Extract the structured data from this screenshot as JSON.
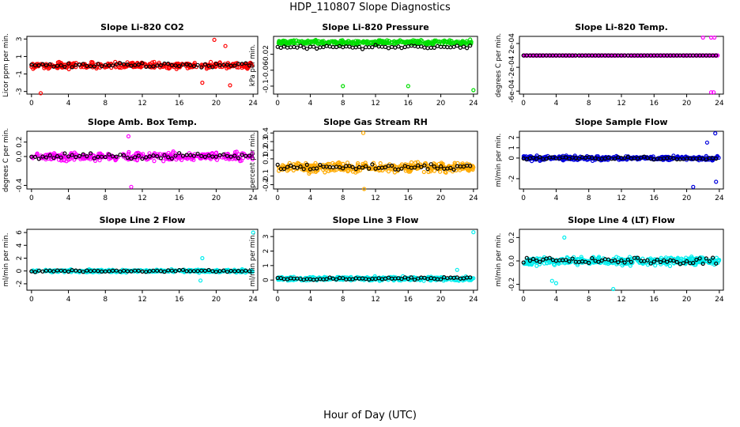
{
  "title": "HDP_110807  Slope Diagnostics",
  "xlabel": "Hour of Day (UTC)",
  "chart_data": [
    {
      "type": "scatter",
      "title": "Slope Li-820 CO2",
      "ylabel": "Licor ppm per min.",
      "color": "#ff0000",
      "xlim": [
        -0.5,
        24.5
      ],
      "ylim": [
        -3.3,
        3.3
      ],
      "xticks": [
        0,
        4,
        8,
        12,
        16,
        20,
        24
      ],
      "yticks": [
        -3,
        -1,
        1,
        3
      ],
      "spread": 0.5,
      "outliers_hi": [
        [
          19.8,
          2.9
        ],
        [
          21.0,
          2.2
        ]
      ],
      "outliers_lo": [
        [
          18.5,
          -2.0
        ],
        [
          21.5,
          -2.3
        ],
        [
          1.0,
          -3.2
        ]
      ]
    },
    {
      "type": "scatter",
      "title": "Slope Li-820 Pressure",
      "ylabel": "kPa per min.",
      "color": "#00dd00",
      "xlim": [
        -0.5,
        24.5
      ],
      "ylim": [
        -0.12,
        0.025
      ],
      "xticks": [
        0,
        4,
        8,
        12,
        16,
        20,
        24
      ],
      "yticks": [
        -0.1,
        -0.06,
        -0.02
      ],
      "spread": 0.008,
      "center": 0.01,
      "outliers_lo": [
        [
          8.0,
          -0.1
        ],
        [
          16.0,
          -0.1
        ],
        [
          24.0,
          -0.11
        ]
      ]
    },
    {
      "type": "scatter",
      "title": "Slope Li-820 Temp.",
      "ylabel": "degrees C per min.",
      "color": "#ff00ff",
      "xlim": [
        -0.5,
        24.5
      ],
      "ylim": [
        -0.00065,
        0.00032
      ],
      "xticks": [
        0,
        4,
        8,
        12,
        16,
        20,
        24
      ],
      "yticks": [
        "-6e-04",
        "-2e-04",
        "2e-04"
      ],
      "spread": 0,
      "outliers_hi": [
        [
          22.0,
          0.0003
        ],
        [
          23.0,
          0.0003
        ],
        [
          23.4,
          0.0003
        ]
      ],
      "outliers_lo": [
        [
          23.0,
          -0.00062
        ],
        [
          23.3,
          -0.00062
        ]
      ]
    },
    {
      "type": "scatter",
      "title": "Slope Amb. Box Temp.",
      "ylabel": "degrees C per min.",
      "color": "#ff00ff",
      "xlim": [
        -0.5,
        24.5
      ],
      "ylim": [
        -0.45,
        0.35
      ],
      "xticks": [
        0,
        4,
        8,
        12,
        16,
        20,
        24
      ],
      "yticks": [
        "-0.4",
        "0.0",
        "0.2"
      ],
      "spread": 0.08,
      "outliers_hi": [
        [
          10.5,
          0.28
        ]
      ],
      "outliers_lo": [
        [
          10.8,
          -0.42
        ]
      ]
    },
    {
      "type": "scatter",
      "title": "Slope Gas Stream RH",
      "ylabel": "percent per min.",
      "color": "#ffaa00",
      "xlim": [
        -0.5,
        24.5
      ],
      "ylim": [
        -0.25,
        0.42
      ],
      "xticks": [
        0,
        4,
        8,
        12,
        16,
        20,
        24
      ],
      "yticks": [
        "-0.2",
        "-0.1",
        "0.1",
        "0.2",
        "0.3",
        "0.4"
      ],
      "spread": 0.08,
      "outliers_hi": [
        [
          10.5,
          0.4
        ]
      ],
      "outliers_lo": [
        [
          10.6,
          -0.25
        ]
      ]
    },
    {
      "type": "scatter",
      "title": "Slope Sample Flow",
      "ylabel": "ml/min per min.",
      "color": "#0000dd",
      "xlim": [
        -0.5,
        24.5
      ],
      "ylim": [
        -3.0,
        2.6
      ],
      "xticks": [
        0,
        4,
        8,
        12,
        16,
        20,
        24
      ],
      "yticks": [
        "-2",
        "0",
        "1",
        "2"
      ],
      "spread": 0.3,
      "outliers_hi": [
        [
          23.5,
          2.4
        ],
        [
          22.5,
          1.5
        ]
      ],
      "outliers_lo": [
        [
          20.8,
          -2.8
        ],
        [
          23.6,
          -2.3
        ]
      ]
    },
    {
      "type": "scatter",
      "title": "Slope Line 2 Flow",
      "ylabel": "ml/min per min.",
      "color": "#00eeee",
      "xlim": [
        -0.5,
        24.5
      ],
      "ylim": [
        -3.0,
        6.5
      ],
      "xticks": [
        0,
        4,
        8,
        12,
        16,
        20,
        24
      ],
      "yticks": [
        "-2",
        "0",
        "2",
        "4",
        "6"
      ],
      "spread": 0.3,
      "outliers_hi": [
        [
          24.0,
          6.0
        ],
        [
          18.5,
          2.0
        ]
      ],
      "outliers_lo": [
        [
          18.3,
          -1.5
        ]
      ]
    },
    {
      "type": "scatter",
      "title": "Slope Line 3 Flow",
      "ylabel": "ml/min per min.",
      "color": "#00eeee",
      "xlim": [
        -0.5,
        24.5
      ],
      "ylim": [
        -0.7,
        3.5
      ],
      "xticks": [
        0,
        4,
        8,
        12,
        16,
        20,
        24
      ],
      "yticks": [
        "0",
        "1",
        "2",
        "3"
      ],
      "spread": 0.2,
      "center": 0.1,
      "outliers_hi": [
        [
          24.0,
          3.3
        ],
        [
          22.0,
          0.7
        ]
      ]
    },
    {
      "type": "scatter",
      "title": "Slope Line 4 (LT) Flow",
      "ylabel": "ml/min per min.",
      "color": "#00eeee",
      "xlim": [
        -0.5,
        24.5
      ],
      "ylim": [
        -0.25,
        0.27
      ],
      "xticks": [
        0,
        4,
        8,
        12,
        16,
        20,
        24
      ],
      "yticks": [
        "-0.2",
        "0.0",
        "0.2"
      ],
      "spread": 0.05,
      "outliers_hi": [
        [
          5.0,
          0.2
        ]
      ],
      "outliers_lo": [
        [
          11.0,
          -0.24
        ],
        [
          3.5,
          -0.17
        ],
        [
          4.0,
          -0.19
        ]
      ]
    }
  ]
}
